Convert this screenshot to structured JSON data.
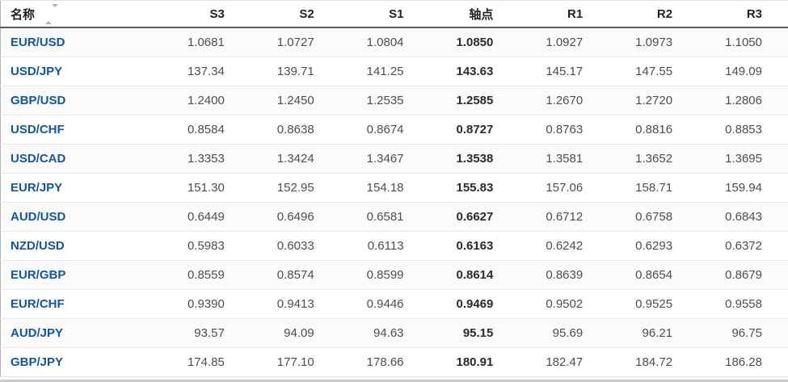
{
  "colors": {
    "pair_link": "#1256a0",
    "number_text": "#4d4d4d",
    "pivot_text": "#2b2b2b",
    "header_text": "#222222",
    "header_border": "#5c5c5c",
    "row_border": "#e6e6e6",
    "sort_icon": "#b3b3b3",
    "bottom_bar": "#c9c9c9"
  },
  "table": {
    "name_header": "名称",
    "value_headers": [
      "S3",
      "S2",
      "S1",
      "轴点",
      "R1",
      "R2",
      "R3"
    ],
    "value_keys": [
      "s3",
      "s2",
      "s1",
      "pivot",
      "r1",
      "r2",
      "r3"
    ],
    "pivot_column_index": 3,
    "rows": [
      {
        "name": "EUR/USD",
        "values": [
          "1.0681",
          "1.0727",
          "1.0804",
          "1.0850",
          "1.0927",
          "1.0973",
          "1.1050"
        ]
      },
      {
        "name": "USD/JPY",
        "values": [
          "137.34",
          "139.71",
          "141.25",
          "143.63",
          "145.17",
          "147.55",
          "149.09"
        ]
      },
      {
        "name": "GBP/USD",
        "values": [
          "1.2400",
          "1.2450",
          "1.2535",
          "1.2585",
          "1.2670",
          "1.2720",
          "1.2806"
        ]
      },
      {
        "name": "USD/CHF",
        "values": [
          "0.8584",
          "0.8638",
          "0.8674",
          "0.8727",
          "0.8763",
          "0.8816",
          "0.8853"
        ]
      },
      {
        "name": "USD/CAD",
        "values": [
          "1.3353",
          "1.3424",
          "1.3467",
          "1.3538",
          "1.3581",
          "1.3652",
          "1.3695"
        ]
      },
      {
        "name": "EUR/JPY",
        "values": [
          "151.30",
          "152.95",
          "154.18",
          "155.83",
          "157.06",
          "158.71",
          "159.94"
        ]
      },
      {
        "name": "AUD/USD",
        "values": [
          "0.6449",
          "0.6496",
          "0.6581",
          "0.6627",
          "0.6712",
          "0.6758",
          "0.6843"
        ]
      },
      {
        "name": "NZD/USD",
        "values": [
          "0.5983",
          "0.6033",
          "0.6113",
          "0.6163",
          "0.6242",
          "0.6293",
          "0.6372"
        ]
      },
      {
        "name": "EUR/GBP",
        "values": [
          "0.8559",
          "0.8574",
          "0.8599",
          "0.8614",
          "0.8639",
          "0.8654",
          "0.8679"
        ]
      },
      {
        "name": "EUR/CHF",
        "values": [
          "0.9390",
          "0.9413",
          "0.9446",
          "0.9469",
          "0.9502",
          "0.9525",
          "0.9558"
        ]
      },
      {
        "name": "AUD/JPY",
        "values": [
          "93.57",
          "94.09",
          "94.63",
          "95.15",
          "95.69",
          "96.21",
          "96.75"
        ]
      },
      {
        "name": "GBP/JPY",
        "values": [
          "174.85",
          "177.10",
          "178.66",
          "180.91",
          "182.47",
          "184.72",
          "186.28"
        ]
      }
    ]
  }
}
